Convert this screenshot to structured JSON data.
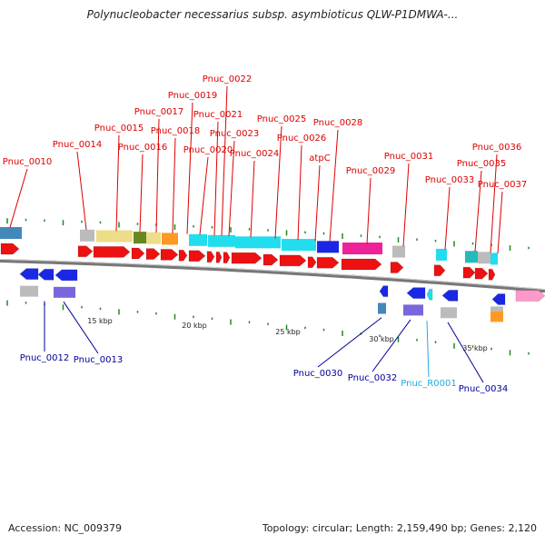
{
  "title": "Polynucleobacter necessarius subsp. asymbioticus QLW-P1DMWA-...",
  "accession": "Accession: NC_009379",
  "summary": "Topology: circular; Length: 2,159,490 bp; Genes: 2,120",
  "colors": {
    "red": "#ee1111",
    "blue": "#1a28e6",
    "cyan": "#22ddee",
    "magenta": "#ee2299",
    "gray": "#bbbbbb",
    "khaki": "#eedd88",
    "olive": "#668822",
    "orange": "#ff9922",
    "steel": "#4488bb",
    "purple": "#7766dd",
    "pink": "#ff99cc",
    "teal": "#22bbbb",
    "label_top": "#dd0000",
    "label_bottom": "#000099",
    "label_rna": "#22aadd"
  },
  "scale_labels": [
    "15 kbp",
    "20 kbp",
    "25 kbp",
    "30 kbp",
    "35 kbp"
  ],
  "top_labels": [
    {
      "text": "Pnuc_0010"
    },
    {
      "text": "Pnuc_0014"
    },
    {
      "text": "Pnuc_0015"
    },
    {
      "text": "Pnuc_0016"
    },
    {
      "text": "Pnuc_0017"
    },
    {
      "text": "Pnuc_0018"
    },
    {
      "text": "Pnuc_0019"
    },
    {
      "text": "Pnuc_0020"
    },
    {
      "text": "Pnuc_0021"
    },
    {
      "text": "Pnuc_0022"
    },
    {
      "text": "Pnuc_0023"
    },
    {
      "text": "Pnuc_0024"
    },
    {
      "text": "Pnuc_0025"
    },
    {
      "text": "Pnuc_0026"
    },
    {
      "text": "atpC"
    },
    {
      "text": "Pnuc_0028"
    },
    {
      "text": "Pnuc_0029"
    },
    {
      "text": "Pnuc_0031"
    },
    {
      "text": "Pnuc_0033"
    },
    {
      "text": "Pnuc_0035"
    },
    {
      "text": "Pnuc_0036"
    },
    {
      "text": "Pnuc_0037"
    }
  ],
  "bottom_labels": [
    {
      "text": "Pnuc_0012"
    },
    {
      "text": "Pnuc_0013"
    },
    {
      "text": "Pnuc_0030"
    },
    {
      "text": "Pnuc_0032"
    },
    {
      "text": "Pnuc_R0001"
    },
    {
      "text": "Pnuc_0034"
    }
  ]
}
